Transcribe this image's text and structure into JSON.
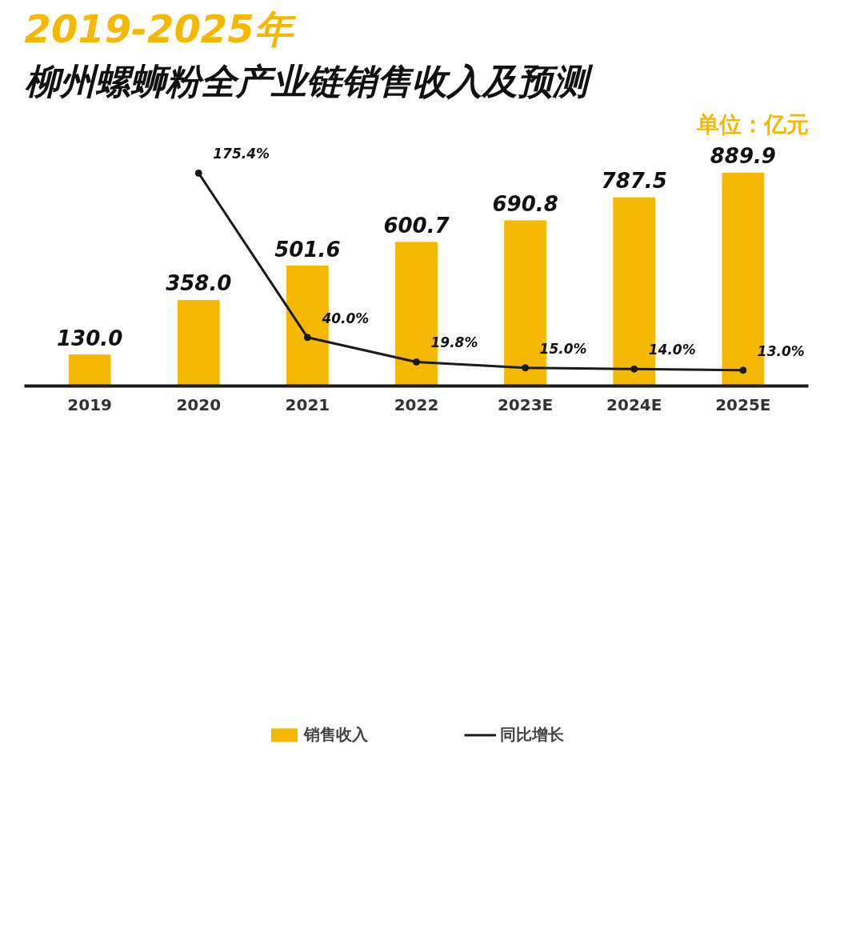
{
  "chart_data": {
    "type": "bar",
    "title": "2019-2025年",
    "subtitle": "柳州螺蛳粉全产业链销售收入及预测",
    "annotations": [
      "单位：亿元"
    ],
    "categories": [
      "2019",
      "2020",
      "2021",
      "2022",
      "2023E",
      "2024E",
      "2025E"
    ],
    "series": [
      {
        "name": "销售收入",
        "color": "#f5b800",
        "values": [
          130.0,
          358.0,
          501.6,
          600.7,
          690.8,
          787.5,
          889.9
        ],
        "value_labels": [
          "130.0",
          "358.0",
          "501.6",
          "600.7",
          "690.8",
          "787.5",
          "889.9"
        ]
      },
      {
        "name": "同比增长",
        "type": "line",
        "axis": "y2",
        "color": "#1a1a1a",
        "marker": "circle",
        "values": [
          null,
          175.4,
          40.0,
          19.8,
          15.0,
          14.0,
          13.0
        ],
        "value_labels": [
          null,
          "175.4%",
          "40.0%",
          "19.8%",
          "15.0%",
          "14.0%",
          "13.0%"
        ]
      }
    ],
    "tick_labels": "x",
    "grid": false,
    "legend": "bottom"
  }
}
